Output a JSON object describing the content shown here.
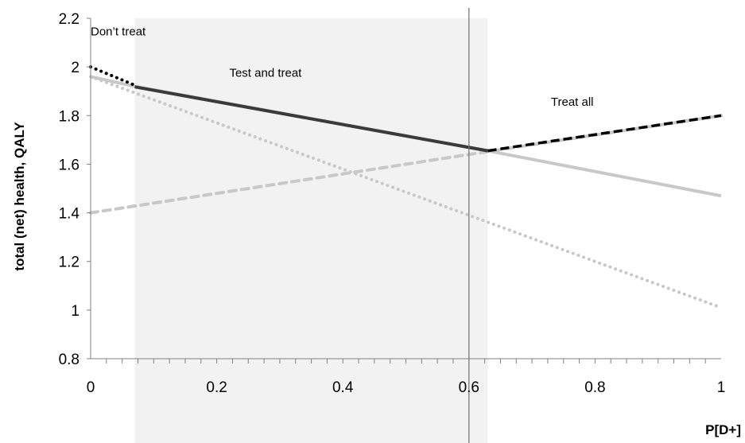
{
  "chart_data": {
    "type": "line",
    "title": "",
    "xlabel": "P[D+]",
    "ylabel": "total (net) health, QALY",
    "xlim": [
      0,
      1
    ],
    "ylim": [
      0.8,
      2.2
    ],
    "x_ticks": [
      "0",
      "0.2",
      "0.4",
      "0.6",
      "0.8",
      "1"
    ],
    "y_ticks": [
      "0.8",
      "1",
      "1.2",
      "1.4",
      "1.6",
      "1.8",
      "2",
      "2.2"
    ],
    "shaded_region": [
      0.07,
      0.63
    ],
    "vertical_line_x": 0.6,
    "annotations": [
      {
        "text": "Don’t treat",
        "x": 0.0,
        "y": 2.13
      },
      {
        "text": "Test and treat",
        "x": 0.22,
        "y": 1.96
      },
      {
        "text": "Treat all",
        "x": 0.73,
        "y": 1.84
      }
    ],
    "series": [
      {
        "style": "dotted-gray",
        "x": [
          0,
          1
        ],
        "y": [
          1.96,
          1.01
        ]
      },
      {
        "style": "dashed-gray",
        "x": [
          0,
          1
        ],
        "y": [
          1.4,
          1.8
        ]
      },
      {
        "style": "solid-gray",
        "x": [
          0,
          0.07,
          0.63,
          1
        ],
        "y": [
          1.96,
          1.92,
          1.655,
          1.47
        ]
      },
      {
        "style": "dotted-black",
        "x": [
          0,
          0.07
        ],
        "y": [
          2.0,
          1.925
        ]
      },
      {
        "style": "solid-black",
        "x": [
          0.07,
          0.63
        ],
        "y": [
          1.918,
          1.655
        ]
      },
      {
        "style": "dashed-black",
        "x": [
          0.63,
          1
        ],
        "y": [
          1.655,
          1.8
        ]
      }
    ],
    "colors": {
      "shade": "#f2f2f2",
      "light_series": "#c8c8c8",
      "dark_solid": "#3a3a3a",
      "dark_dashed": "#000000",
      "axis": "#808080"
    }
  }
}
